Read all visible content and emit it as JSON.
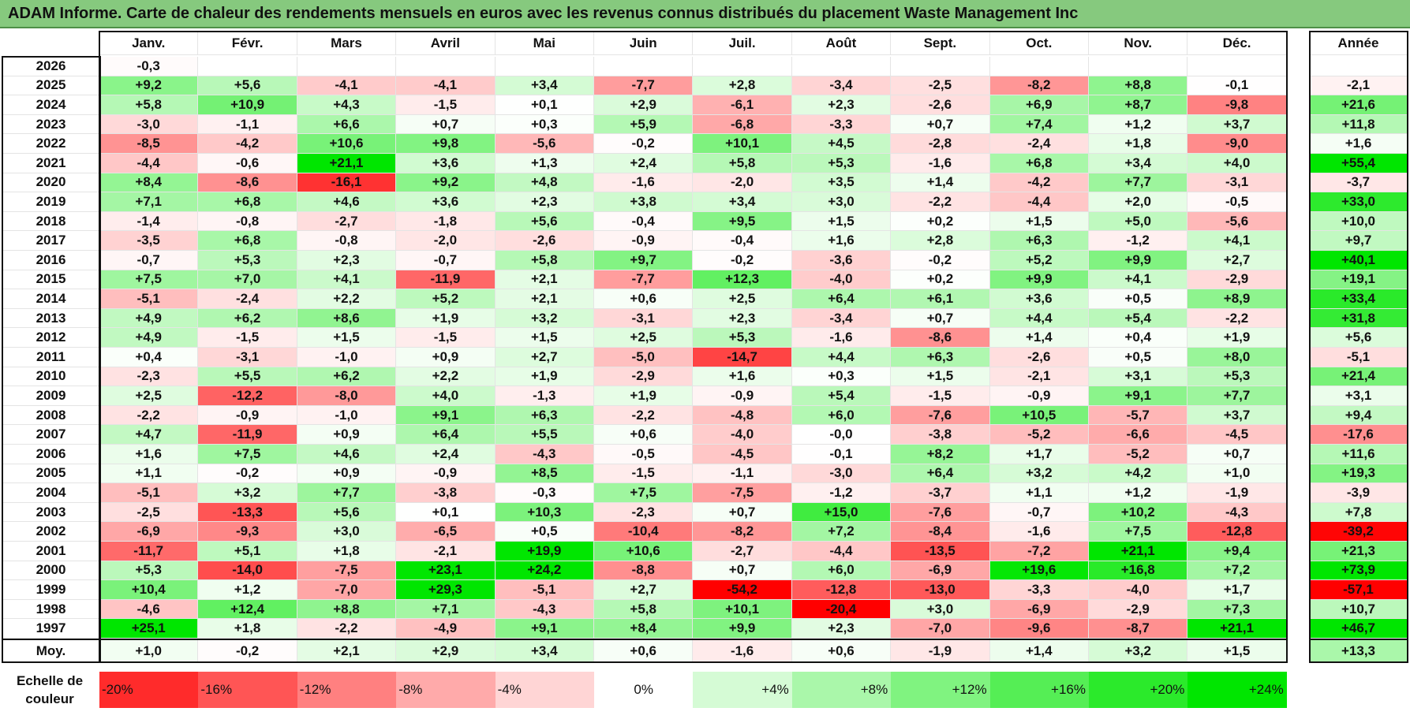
{
  "title": "ADAM Informe. Carte de chaleur des rendements mensuels en euros avec les revenus connus distribués du placement Waste Management Inc",
  "chart_data": {
    "type": "heatmap",
    "title": "ADAM Informe. Carte de chaleur des rendements mensuels en euros avec les revenus connus distribués du placement Waste Management Inc",
    "months": [
      "Janv.",
      "Févr.",
      "Mars",
      "Avril",
      "Mai",
      "Juin",
      "Juil.",
      "Août",
      "Sept.",
      "Oct.",
      "Nov.",
      "Déc."
    ],
    "annual_header": "Année",
    "rows": [
      {
        "year": "2026",
        "months": [
          "-0,3",
          "",
          "",
          "",
          "",
          "",
          "",
          "",
          "",
          "",
          "",
          ""
        ],
        "annual": ""
      },
      {
        "year": "2025",
        "months": [
          "+9,2",
          "+5,6",
          "-4,1",
          "-4,1",
          "+3,4",
          "-7,7",
          "+2,8",
          "-3,4",
          "-2,5",
          "-8,2",
          "+8,8",
          "-0,1"
        ],
        "annual": "-2,1"
      },
      {
        "year": "2024",
        "months": [
          "+5,8",
          "+10,9",
          "+4,3",
          "-1,5",
          "+0,1",
          "+2,9",
          "-6,1",
          "+2,3",
          "-2,6",
          "+6,9",
          "+8,7",
          "-9,8"
        ],
        "annual": "+21,6"
      },
      {
        "year": "2023",
        "months": [
          "-3,0",
          "-1,1",
          "+6,6",
          "+0,7",
          "+0,3",
          "+5,9",
          "-6,8",
          "-3,3",
          "+0,7",
          "+7,4",
          "+1,2",
          "+3,7"
        ],
        "annual": "+11,8"
      },
      {
        "year": "2022",
        "months": [
          "-8,5",
          "-4,2",
          "+10,6",
          "+9,8",
          "-5,6",
          "-0,2",
          "+10,1",
          "+4,5",
          "-2,8",
          "-2,4",
          "+1,8",
          "-9,0"
        ],
        "annual": "+1,6"
      },
      {
        "year": "2021",
        "months": [
          "-4,4",
          "-0,6",
          "+21,1",
          "+3,6",
          "+1,3",
          "+2,4",
          "+5,8",
          "+5,3",
          "-1,6",
          "+6,8",
          "+3,4",
          "+4,0"
        ],
        "annual": "+55,4"
      },
      {
        "year": "2020",
        "months": [
          "+8,4",
          "-8,6",
          "-16,1",
          "+9,2",
          "+4,8",
          "-1,6",
          "-2,0",
          "+3,5",
          "+1,4",
          "-4,2",
          "+7,7",
          "-3,1"
        ],
        "annual": "-3,7"
      },
      {
        "year": "2019",
        "months": [
          "+7,1",
          "+6,8",
          "+4,6",
          "+3,6",
          "+2,3",
          "+3,8",
          "+3,4",
          "+3,0",
          "-2,2",
          "-4,4",
          "+2,0",
          "-0,5"
        ],
        "annual": "+33,0"
      },
      {
        "year": "2018",
        "months": [
          "-1,4",
          "-0,8",
          "-2,7",
          "-1,8",
          "+5,6",
          "-0,4",
          "+9,5",
          "+1,5",
          "+0,2",
          "+1,5",
          "+5,0",
          "-5,6"
        ],
        "annual": "+10,0"
      },
      {
        "year": "2017",
        "months": [
          "-3,5",
          "+6,8",
          "-0,8",
          "-2,0",
          "-2,6",
          "-0,9",
          "-0,4",
          "+1,6",
          "+2,8",
          "+6,3",
          "-1,2",
          "+4,1"
        ],
        "annual": "+9,7"
      },
      {
        "year": "2016",
        "months": [
          "-0,7",
          "+5,3",
          "+2,3",
          "-0,7",
          "+5,8",
          "+9,7",
          "-0,2",
          "-3,6",
          "-0,2",
          "+5,2",
          "+9,9",
          "+2,7"
        ],
        "annual": "+40,1"
      },
      {
        "year": "2015",
        "months": [
          "+7,5",
          "+7,0",
          "+4,1",
          "-11,9",
          "+2,1",
          "-7,7",
          "+12,3",
          "-4,0",
          "+0,2",
          "+9,9",
          "+4,1",
          "-2,9"
        ],
        "annual": "+19,1"
      },
      {
        "year": "2014",
        "months": [
          "-5,1",
          "-2,4",
          "+2,2",
          "+5,2",
          "+2,1",
          "+0,6",
          "+2,5",
          "+6,4",
          "+6,1",
          "+3,6",
          "+0,5",
          "+8,9"
        ],
        "annual": "+33,4"
      },
      {
        "year": "2013",
        "months": [
          "+4,9",
          "+6,2",
          "+8,6",
          "+1,9",
          "+3,2",
          "-3,1",
          "+2,3",
          "-3,4",
          "+0,7",
          "+4,4",
          "+5,4",
          "-2,2"
        ],
        "annual": "+31,8"
      },
      {
        "year": "2012",
        "months": [
          "+4,9",
          "-1,5",
          "+1,5",
          "-1,5",
          "+1,5",
          "+2,5",
          "+5,3",
          "-1,6",
          "-8,6",
          "+1,4",
          "+0,4",
          "+1,9"
        ],
        "annual": "+5,6"
      },
      {
        "year": "2011",
        "months": [
          "+0,4",
          "-3,1",
          "-1,0",
          "+0,9",
          "+2,7",
          "-5,0",
          "-14,7",
          "+4,4",
          "+6,3",
          "-2,6",
          "+0,5",
          "+8,0"
        ],
        "annual": "-5,1"
      },
      {
        "year": "2010",
        "months": [
          "-2,3",
          "+5,5",
          "+6,2",
          "+2,2",
          "+1,9",
          "-2,9",
          "+1,6",
          "+0,3",
          "+1,5",
          "-2,1",
          "+3,1",
          "+5,3"
        ],
        "annual": "+21,4"
      },
      {
        "year": "2009",
        "months": [
          "+2,5",
          "-12,2",
          "-8,0",
          "+4,0",
          "-1,3",
          "+1,9",
          "-0,9",
          "+5,4",
          "-1,5",
          "-0,9",
          "+9,1",
          "+7,7"
        ],
        "annual": "+3,1"
      },
      {
        "year": "2008",
        "months": [
          "-2,2",
          "-0,9",
          "-1,0",
          "+9,1",
          "+6,3",
          "-2,2",
          "-4,8",
          "+6,0",
          "-7,6",
          "+10,5",
          "-5,7",
          "+3,7"
        ],
        "annual": "+9,4"
      },
      {
        "year": "2007",
        "months": [
          "+4,7",
          "-11,9",
          "+0,9",
          "+6,4",
          "+5,5",
          "+0,6",
          "-4,0",
          "-0,0",
          "-3,8",
          "-5,2",
          "-6,6",
          "-4,5"
        ],
        "annual": "-17,6"
      },
      {
        "year": "2006",
        "months": [
          "+1,6",
          "+7,5",
          "+4,6",
          "+2,4",
          "-4,3",
          "-0,5",
          "-4,5",
          "-0,1",
          "+8,2",
          "+1,7",
          "-5,2",
          "+0,7"
        ],
        "annual": "+11,6"
      },
      {
        "year": "2005",
        "months": [
          "+1,1",
          "-0,2",
          "+0,9",
          "-0,9",
          "+8,5",
          "-1,5",
          "-1,1",
          "-3,0",
          "+6,4",
          "+3,2",
          "+4,2",
          "+1,0"
        ],
        "annual": "+19,3"
      },
      {
        "year": "2004",
        "months": [
          "-5,1",
          "+3,2",
          "+7,7",
          "-3,8",
          "-0,3",
          "+7,5",
          "-7,5",
          "-1,2",
          "-3,7",
          "+1,1",
          "+1,2",
          "-1,9"
        ],
        "annual": "-3,9"
      },
      {
        "year": "2003",
        "months": [
          "-2,5",
          "-13,3",
          "+5,6",
          "+0,1",
          "+10,3",
          "-2,3",
          "+0,7",
          "+15,0",
          "-7,6",
          "-0,7",
          "+10,2",
          "-4,3"
        ],
        "annual": "+7,8"
      },
      {
        "year": "2002",
        "months": [
          "-6,9",
          "-9,3",
          "+3,0",
          "-6,5",
          "+0,5",
          "-10,4",
          "-8,2",
          "+7,2",
          "-8,4",
          "-1,6",
          "+7,5",
          "-12,8"
        ],
        "annual": "-39,2"
      },
      {
        "year": "2001",
        "months": [
          "-11,7",
          "+5,1",
          "+1,8",
          "-2,1",
          "+19,9",
          "+10,6",
          "-2,7",
          "-4,4",
          "-13,5",
          "-7,2",
          "+21,1",
          "+9,4"
        ],
        "annual": "+21,3"
      },
      {
        "year": "2000",
        "months": [
          "+5,3",
          "-14,0",
          "-7,5",
          "+23,1",
          "+24,2",
          "-8,8",
          "+0,7",
          "+6,0",
          "-6,9",
          "+19,6",
          "+16,8",
          "+7,2"
        ],
        "annual": "+73,9"
      },
      {
        "year": "1999",
        "months": [
          "+10,4",
          "+1,2",
          "-7,0",
          "+29,3",
          "-5,1",
          "+2,7",
          "-54,2",
          "-12,8",
          "-13,0",
          "-3,3",
          "-4,0",
          "+1,7"
        ],
        "annual": "-57,1"
      },
      {
        "year": "1998",
        "months": [
          "-4,6",
          "+12,4",
          "+8,8",
          "+7,1",
          "-4,3",
          "+5,8",
          "+10,1",
          "-20,4",
          "+3,0",
          "-6,9",
          "-2,9",
          "+7,3"
        ],
        "annual": "+10,7"
      },
      {
        "year": "1997",
        "months": [
          "+25,1",
          "+1,8",
          "-2,2",
          "-4,9",
          "+9,1",
          "+8,4",
          "+9,9",
          "+2,3",
          "-7,0",
          "-9,6",
          "-8,7",
          "+21,1"
        ],
        "annual": "+46,7"
      }
    ],
    "average": {
      "label": "Moy.",
      "months": [
        "+1,0",
        "-0,2",
        "+2,1",
        "+2,9",
        "+3,4",
        "+0,6",
        "-1,6",
        "+0,6",
        "-1,9",
        "+1,4",
        "+3,2",
        "+1,5"
      ],
      "annual": "+13,3"
    },
    "scale": {
      "label_line1": "Echelle de",
      "label_line2": "couleur",
      "stops": [
        {
          "label": "-20%",
          "value": -20
        },
        {
          "label": "-16%",
          "value": -16
        },
        {
          "label": "-12%",
          "value": -12
        },
        {
          "label": "-8%",
          "value": -8
        },
        {
          "label": "-4%",
          "value": -4
        },
        {
          "label": "0%",
          "value": 0
        },
        {
          "label": "+4%",
          "value": 4
        },
        {
          "label": "+8%",
          "value": 8
        },
        {
          "label": "+12%",
          "value": 12
        },
        {
          "label": "+16%",
          "value": 16
        },
        {
          "label": "+20%",
          "value": 20
        },
        {
          "label": "+24%",
          "value": 24
        }
      ]
    },
    "colors": {
      "negative_max": "#ff0000",
      "positive_max": "#00e600",
      "neutral": "#ffffff",
      "title_bar": "#86c97e"
    }
  }
}
